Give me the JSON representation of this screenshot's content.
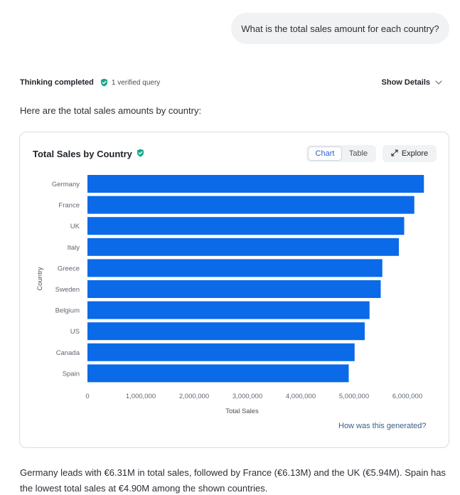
{
  "user_message": "What is the total sales amount for each country?",
  "status": {
    "title": "Thinking completed",
    "verified": "1 verified query",
    "show_details": "Show Details"
  },
  "intro": "Here are the total sales amounts by country:",
  "card": {
    "title": "Total Sales by Country",
    "toggle": {
      "chart": "Chart",
      "table": "Table"
    },
    "explore": "Explore",
    "how": "How was this generated?"
  },
  "summary": "Germany leads with €6.31M in total sales, followed by France (€6.13M) and the UK (€5.94M). Spain has the lowest total sales at €4.90M among the shown countries.",
  "colors": {
    "bar": "#0a6ae8",
    "verified": "#19a88a",
    "accent": "#2563c9"
  },
  "chart_data": {
    "type": "bar",
    "orientation": "horizontal",
    "title": "Total Sales by Country",
    "xlabel": "Total Sales",
    "ylabel": "Country",
    "categories": [
      "Germany",
      "France",
      "UK",
      "Italy",
      "Greece",
      "Sweden",
      "Belgium",
      "US",
      "Canada",
      "Spain"
    ],
    "values": [
      6310000,
      6130000,
      5940000,
      5840000,
      5530000,
      5500000,
      5290000,
      5200000,
      5010000,
      4900000
    ],
    "xlim": [
      0,
      6000000
    ],
    "xticks": [
      0,
      1000000,
      2000000,
      3000000,
      4000000,
      5000000,
      6000000
    ],
    "xtick_labels": [
      "0",
      "1,000,000",
      "2,000,000",
      "3,000,000",
      "4,000,000",
      "5,000,000",
      "6,000,000"
    ],
    "grid": false
  }
}
